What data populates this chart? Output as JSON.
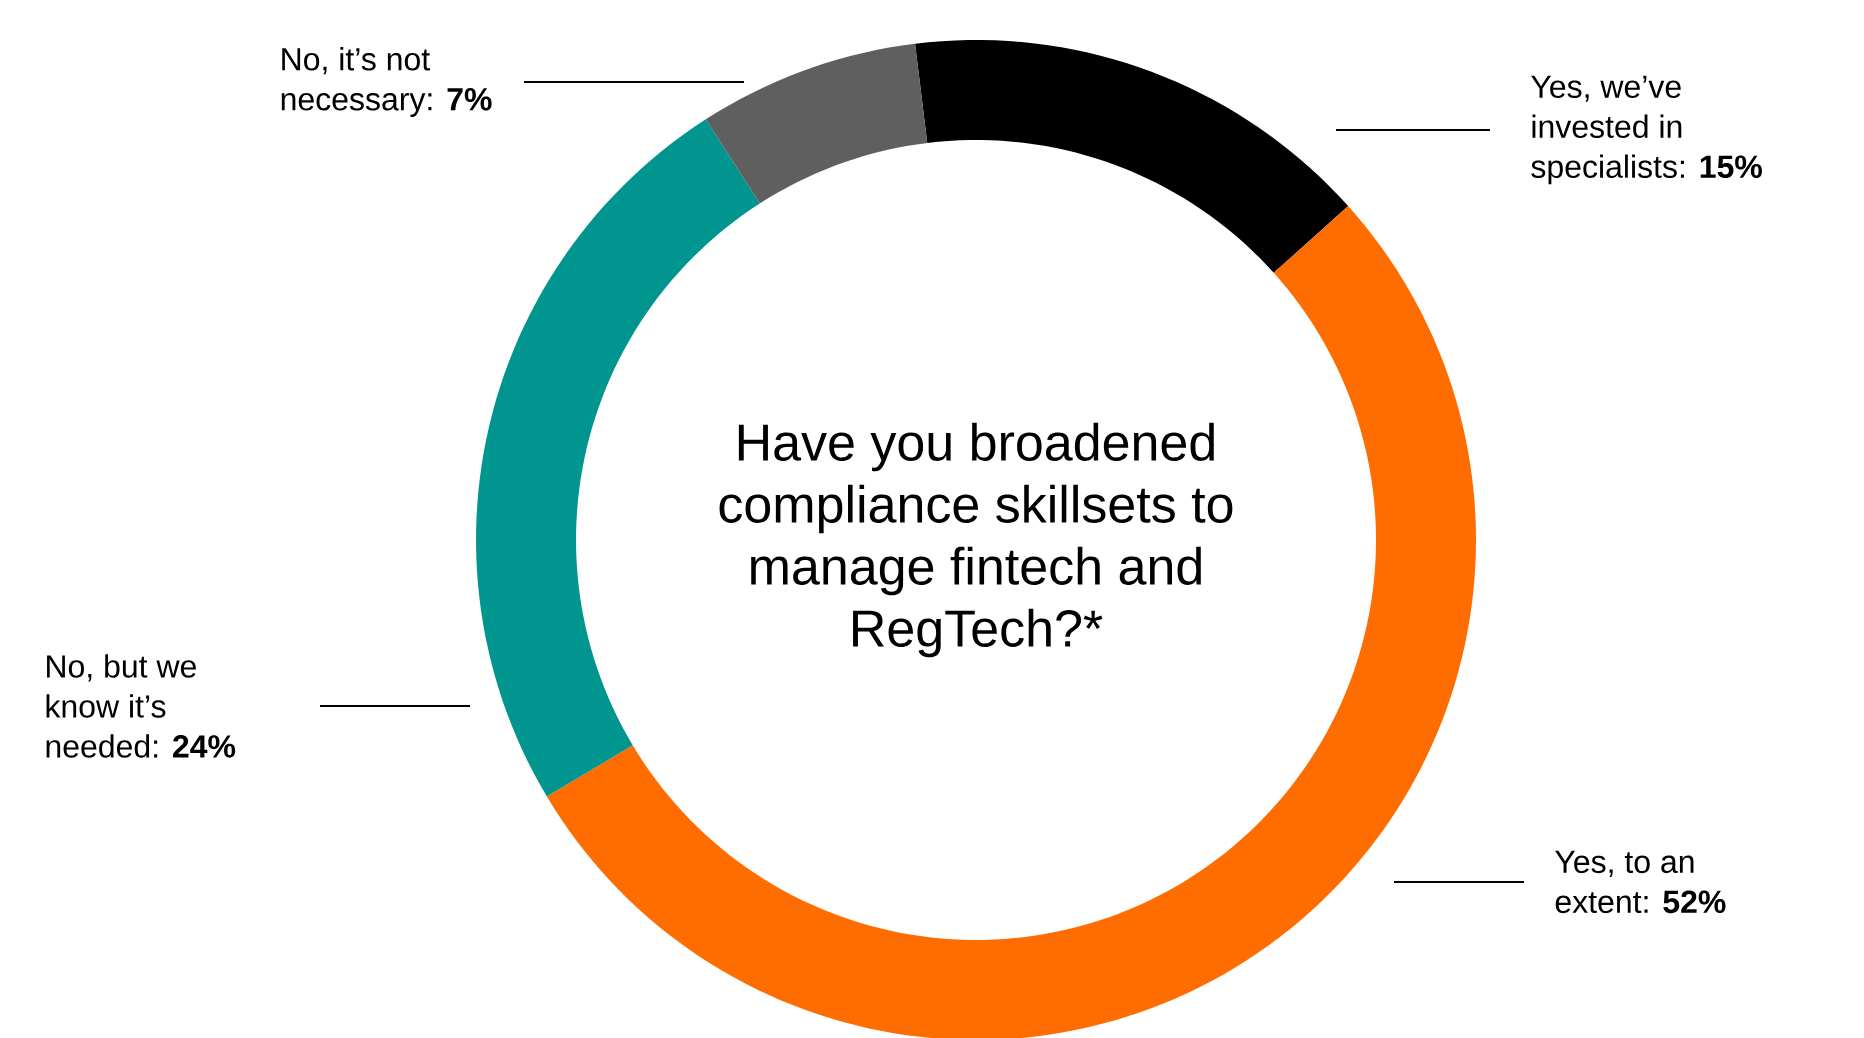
{
  "chart_data": {
    "type": "donut",
    "title": "Have you broadened compliance skillsets to manage fintech and RegTech?*",
    "categories": [
      "Yes, we’ve invested in specialists",
      "Yes, to an extent",
      "No, but we know it’s needed",
      "No, it’s not necessary"
    ],
    "values": [
      15,
      52,
      24,
      7
    ],
    "value_labels": [
      ": **15%**",
      ": **52%**",
      ": **24%**",
      ": **7%**"
    ],
    "colors": [
      "#000000",
      "#ff6c00",
      "#00968f",
      "#5f5f5f"
    ]
  }
}
